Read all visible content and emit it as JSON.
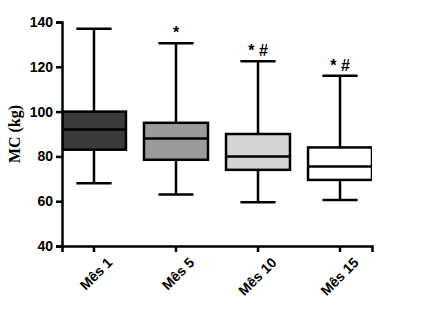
{
  "chart_data": {
    "type": "box",
    "y_label": "MC (kg)",
    "categories": [
      "Mês 1",
      "Mês 5",
      "Mês 10",
      "Mês 15"
    ],
    "min": [
      68,
      63,
      59.5,
      60.5
    ],
    "q1": [
      83,
      78.5,
      74,
      69.5
    ],
    "median": [
      92,
      88,
      80,
      75.5
    ],
    "q3": [
      100,
      95,
      90,
      84
    ],
    "max": [
      137,
      130.5,
      122.5,
      116
    ],
    "colors": [
      "#3a3a3a",
      "#9a9a9a",
      "#d4d4d4",
      "#ffffff"
    ],
    "annotations": [
      null,
      "*",
      "* #",
      "* #"
    ],
    "ylim": [
      40,
      140
    ],
    "yticks": [
      40,
      60,
      80,
      100,
      120,
      140
    ],
    "grid": false
  }
}
